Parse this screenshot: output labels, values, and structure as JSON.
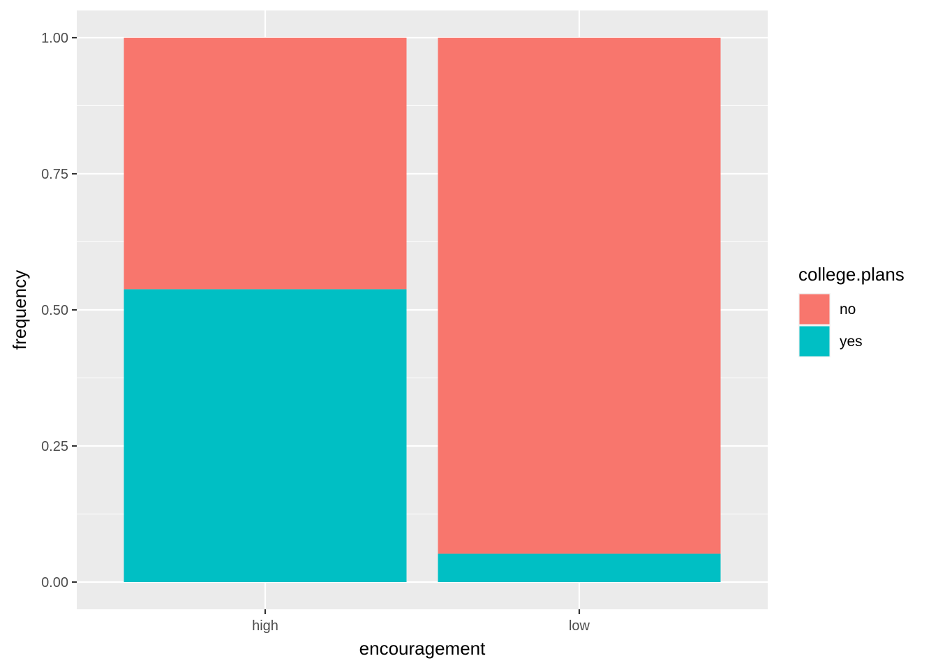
{
  "chart_data": {
    "type": "bar",
    "stacked": true,
    "categories": [
      "high",
      "low"
    ],
    "series": [
      {
        "name": "no",
        "color": "#F8766D",
        "values": [
          0.462,
          0.948
        ]
      },
      {
        "name": "yes",
        "color": "#00BFC4",
        "values": [
          0.538,
          0.052
        ]
      }
    ],
    "xlabel": "encouragement",
    "ylabel": "frequency",
    "ylim": [
      0,
      1
    ],
    "yticks": [
      0,
      0.25,
      0.5,
      0.75,
      1
    ],
    "ytick_labels": [
      "0.00",
      "0.25",
      "0.50",
      "0.75",
      "1.00"
    ],
    "legend": {
      "title": "college.plans",
      "position": "right",
      "entries": [
        "no",
        "yes"
      ]
    },
    "grid": true,
    "panel_background": "#EBEBEB"
  }
}
